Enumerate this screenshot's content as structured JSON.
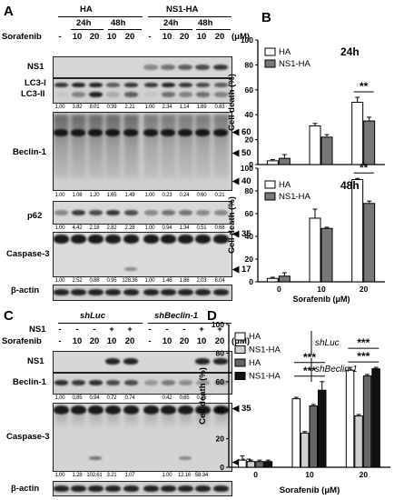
{
  "panel_a": {
    "letter": "A",
    "groups": [
      "HA",
      "NS1-HA"
    ],
    "times": [
      "24h",
      "48h",
      "24h",
      "48h"
    ],
    "sorafenib_label": "Sorafenib",
    "conc": [
      "-",
      "10",
      "20",
      "10",
      "20",
      "-",
      "10",
      "20",
      "10",
      "20"
    ],
    "unit": "(μM)",
    "rows": {
      "ns1": "NS1",
      "lc3a": "LC3-I",
      "lc3b": "LC3-II",
      "beclin": "Beclin-1",
      "p62": "p62",
      "casp3": "Caspase-3",
      "actin": "β-actin"
    },
    "markers": [
      "60",
      "50",
      "40",
      "35",
      "17"
    ],
    "quant": {
      "lc3": [
        "1.00",
        "3.82",
        "8.01",
        "0.39",
        "2.21",
        "1.00",
        "2.34",
        "1.14",
        "1.89",
        "0.63"
      ],
      "beclin": [
        "1.00",
        "1.08",
        "1.20",
        "1.65",
        "1.49",
        "1.00",
        "0.23",
        "0.24",
        "0.60",
        "0.21"
      ],
      "p62": [
        "1.00",
        "4.42",
        "2.18",
        "2.82",
        "2.28",
        "1.00",
        "0.94",
        "1.34",
        "0.51",
        "0.68"
      ],
      "casp3": [
        "1.00",
        "2.52",
        "0.88",
        "0.95",
        "128.36",
        "1.00",
        "1.46",
        "1.86",
        "2.03",
        "8.04"
      ]
    }
  },
  "panel_b": {
    "letter": "B",
    "xlabel": "Sorafenib (μM)"
  },
  "panel_c": {
    "letter": "C",
    "groups": [
      "shLuc",
      "shBeclin-1"
    ],
    "ns1_label": "NS1",
    "ns1_signs": [
      "-",
      "-",
      "-",
      "+",
      "+",
      "-",
      "-",
      "-",
      "+",
      "+"
    ],
    "sorafenib_label": "Sorafenib",
    "conc": [
      "-",
      "10",
      "20",
      "10",
      "20",
      "-",
      "10",
      "20",
      "10",
      "20"
    ],
    "unit": "(μM)",
    "rows": {
      "ns1": "NS1",
      "beclin": "Beclin-1",
      "casp3": "Caspase-3",
      "actin": "β-actin"
    },
    "markers": [
      "35",
      "17"
    ],
    "quant": {
      "beclin": [
        "1.00",
        "0.85",
        "0.94",
        "0.72",
        "0.74",
        "0.42",
        "0.65",
        "0.26"
      ],
      "casp3": [
        "1.00",
        "1.28",
        "102.61",
        "3.21",
        "1.07",
        "1.00",
        "12.16",
        "58.34"
      ]
    }
  },
  "panel_d": {
    "letter": "D",
    "xlabel": "Sorafenib (μM)"
  },
  "chart_data": [
    {
      "type": "bar",
      "title": "24h",
      "ylabel": "Cell death (%)",
      "xlabel": "Sorafenib (μM)",
      "categories": [
        "0",
        "10",
        "20"
      ],
      "ylim": [
        0,
        100
      ],
      "yticks": [
        0,
        20,
        40,
        60,
        80,
        100
      ],
      "series": [
        {
          "name": "HA",
          "color": "#ffffff",
          "values": [
            3,
            31,
            50
          ],
          "errors": [
            1,
            2,
            4
          ]
        },
        {
          "name": "NS1-HA",
          "color": "#777777",
          "values": [
            5,
            22,
            35
          ],
          "errors": [
            3,
            2,
            3
          ]
        }
      ],
      "significance": [
        {
          "category": "20",
          "label": "**"
        }
      ]
    },
    {
      "type": "bar",
      "title": "48h",
      "ylabel": "Cell death (%)",
      "xlabel": "Sorafenib (μM)",
      "categories": [
        "0",
        "10",
        "20"
      ],
      "ylim": [
        0,
        100
      ],
      "yticks": [
        0,
        20,
        40,
        60,
        80,
        100
      ],
      "series": [
        {
          "name": "HA",
          "color": "#ffffff",
          "values": [
            3,
            56,
            90
          ],
          "errors": [
            1,
            8,
            1
          ]
        },
        {
          "name": "NS1-HA",
          "color": "#777777",
          "values": [
            5,
            47,
            69
          ],
          "errors": [
            3,
            1,
            2
          ]
        }
      ],
      "significance": [
        {
          "category": "20",
          "label": "**"
        }
      ]
    },
    {
      "type": "bar",
      "ylabel": "Cell death (%)",
      "xlabel": "Sorafenib (μM)",
      "categories": [
        "0",
        "10",
        "20"
      ],
      "ylim": [
        0,
        100
      ],
      "yticks": [
        0,
        20,
        40,
        60,
        80,
        100
      ],
      "legend_groups": [
        "shLuc",
        "shBeclin-1"
      ],
      "series": [
        {
          "name": "HA",
          "group": "shLuc",
          "color": "#ffffff",
          "values": [
            5,
            48,
            68
          ],
          "errors": [
            3,
            1,
            2
          ]
        },
        {
          "name": "NS1-HA",
          "group": "shLuc",
          "color": "#cfcfcf",
          "values": [
            4,
            24,
            36
          ],
          "errors": [
            1,
            1,
            1
          ]
        },
        {
          "name": "HA",
          "group": "shBeclin-1",
          "color": "#666666",
          "values": [
            4,
            43,
            64
          ],
          "errors": [
            1,
            1,
            1
          ]
        },
        {
          "name": "NS1-HA",
          "group": "shBeclin-1",
          "color": "#111111",
          "values": [
            4,
            54,
            69
          ],
          "errors": [
            1,
            6,
            1
          ]
        }
      ],
      "significance": [
        {
          "category": "10",
          "label": "***",
          "level": 1
        },
        {
          "category": "10",
          "label": "***",
          "level": 2
        },
        {
          "category": "20",
          "label": "***",
          "level": 1
        },
        {
          "category": "20",
          "label": "***",
          "level": 2
        }
      ]
    }
  ]
}
